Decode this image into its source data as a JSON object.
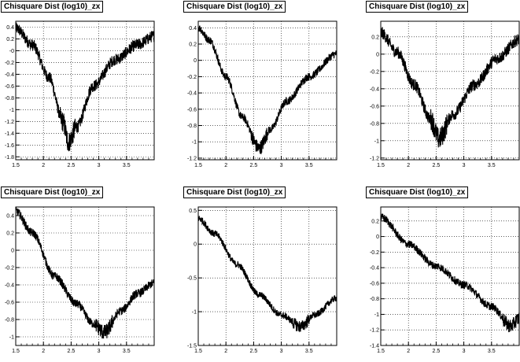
{
  "chart_data": [
    {
      "type": "line",
      "title": "Chisquare Dist (log10)_zx",
      "xlim": [
        1.5,
        4.0
      ],
      "ylim": [
        -1.85,
        0.5
      ],
      "xticks": [
        1.5,
        2,
        2.5,
        3,
        3.5
      ],
      "yticks": [
        -1.8,
        -1.6,
        -1.4,
        -1.2,
        -1,
        -0.8,
        -0.6,
        -0.4,
        -0.2,
        0,
        0.2,
        0.4
      ],
      "ytick_labels": [
        "-1.8",
        "-1.6",
        "-1.4",
        "-1.2",
        "-1",
        "-0.8",
        "-0.6",
        "-0.4",
        "-0.2",
        "-0",
        "0.2",
        "0.4"
      ],
      "grid": true,
      "noise": 0.1,
      "series": [
        {
          "x": [
            1.5,
            1.8,
            2.1,
            2.35,
            2.45,
            2.6,
            2.9,
            3.3,
            3.7,
            4.0
          ],
          "y": [
            0.38,
            0.1,
            -0.45,
            -1.2,
            -1.55,
            -1.3,
            -0.6,
            -0.15,
            0.1,
            0.25
          ]
        }
      ]
    },
    {
      "type": "line",
      "title": "Chisquare Dist (log10)_zx",
      "xlim": [
        1.5,
        4.0
      ],
      "ylim": [
        -1.22,
        0.48
      ],
      "xticks": [
        1.5,
        2,
        2.5,
        3,
        3.5
      ],
      "yticks": [
        -1.2,
        -1,
        -0.8,
        -0.6,
        -0.4,
        -0.2,
        0,
        0.2,
        0.4
      ],
      "ytick_labels": [
        "-1.2",
        "-1",
        "-0.8",
        "-0.6",
        "-0.4",
        "-0.2",
        "0",
        "0.2",
        "0.4"
      ],
      "grid": true,
      "noise": 0.05,
      "series": [
        {
          "x": [
            1.5,
            1.7,
            2.0,
            2.3,
            2.6,
            2.8,
            3.1,
            3.5,
            4.0
          ],
          "y": [
            0.4,
            0.25,
            -0.2,
            -0.7,
            -1.08,
            -0.85,
            -0.5,
            -0.2,
            0.08
          ]
        }
      ]
    },
    {
      "type": "line",
      "title": "Chisquare Dist (log10)_zx",
      "xlim": [
        1.5,
        4.0
      ],
      "ylim": [
        -1.22,
        0.38
      ],
      "xticks": [
        1.5,
        2,
        2.5,
        3,
        3.5
      ],
      "yticks": [
        -1.2,
        -1,
        -0.8,
        -0.6,
        -0.4,
        -0.2,
        0,
        0.2
      ],
      "ytick_labels": [
        "-1.2",
        "-1",
        "-0.8",
        "-0.6",
        "-0.4",
        "-0.2",
        "0",
        "0.2"
      ],
      "grid": true,
      "noise": 0.07,
      "series": [
        {
          "x": [
            1.5,
            1.8,
            2.1,
            2.4,
            2.55,
            2.8,
            3.2,
            3.6,
            4.0
          ],
          "y": [
            0.25,
            0.02,
            -0.35,
            -0.75,
            -0.98,
            -0.7,
            -0.35,
            -0.05,
            0.17
          ]
        }
      ]
    },
    {
      "type": "line",
      "title": "Chisquare Dist (log10)_zx",
      "xlim": [
        1.5,
        4.0
      ],
      "ylim": [
        -1.1,
        0.5
      ],
      "xticks": [
        1.5,
        2,
        2.5,
        3,
        3.5
      ],
      "yticks": [
        -1,
        -0.8,
        -0.6,
        -0.4,
        -0.2,
        0,
        0.2,
        0.4
      ],
      "ytick_labels": [
        "-1",
        "-0.8",
        "-0.6",
        "-0.4",
        "-0.2",
        "0",
        "0.2",
        "0.4"
      ],
      "grid": true,
      "noise": 0.05,
      "series": [
        {
          "x": [
            1.5,
            1.8,
            2.2,
            2.6,
            2.9,
            3.1,
            3.4,
            3.7,
            4.0
          ],
          "y": [
            0.45,
            0.2,
            -0.3,
            -0.62,
            -0.85,
            -0.95,
            -0.7,
            -0.5,
            -0.38
          ]
        }
      ]
    },
    {
      "type": "line",
      "title": "Chisquare Dist (log10)_zx",
      "xlim": [
        1.5,
        4.0
      ],
      "ylim": [
        -1.5,
        0.55
      ],
      "xticks": [
        1.5,
        2,
        2.5,
        3,
        3.5
      ],
      "yticks": [
        -1.5,
        -1,
        -0.5,
        0,
        0.5
      ],
      "ytick_labels": [
        "-1.5",
        "-1",
        "-0.5",
        "0",
        "0.5"
      ],
      "grid": true,
      "noise": 0.05,
      "series": [
        {
          "x": [
            1.5,
            1.8,
            2.2,
            2.6,
            3.0,
            3.35,
            3.6,
            4.0
          ],
          "y": [
            0.38,
            0.15,
            -0.3,
            -0.75,
            -1.05,
            -1.22,
            -1.05,
            -0.8
          ]
        }
      ]
    },
    {
      "type": "line",
      "title": "Chisquare Dist (log10)_zx",
      "xlim": [
        1.5,
        4.0
      ],
      "ylim": [
        -1.4,
        0.38
      ],
      "xticks": [
        1.5,
        2,
        2.5,
        3,
        3.5
      ],
      "yticks": [
        -1.4,
        -1.2,
        -1,
        -0.8,
        -0.6,
        -0.4,
        -0.2,
        0,
        0.2
      ],
      "ytick_labels": [
        "-1.4",
        "-1.2",
        "-1",
        "-0.8",
        "-0.6",
        "-0.4",
        "-0.2",
        "0",
        "0.2"
      ],
      "grid": true,
      "noise": 0.05,
      "series": [
        {
          "x": [
            1.5,
            2.0,
            2.5,
            3.0,
            3.5,
            3.85,
            4.0
          ],
          "y": [
            0.25,
            -0.1,
            -0.38,
            -0.62,
            -0.9,
            -1.15,
            -1.05
          ]
        }
      ]
    }
  ]
}
